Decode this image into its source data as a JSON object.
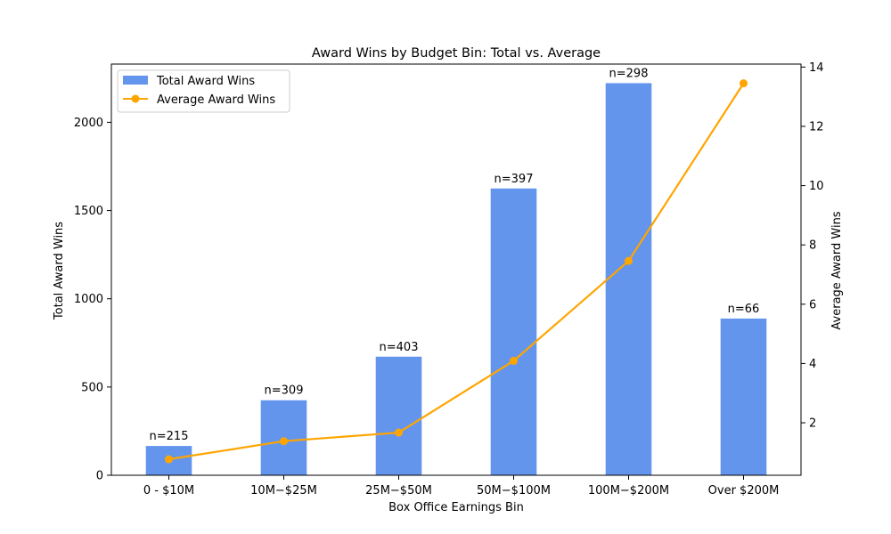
{
  "chart_data": {
    "type": "bar",
    "title": "Award Wins by Budget Bin: Total vs. Average",
    "xlabel": "Box Office Earnings Bin",
    "ylabel": "Total Award Wins",
    "y2label": "Average Award Wins",
    "categories": [
      "0 - $10M",
      "$10M - $25M",
      "$25M - $50M",
      "$50M - $100M",
      "$100M - $200M",
      "Over $200M"
    ],
    "category_tick_labels": [
      "0 - $10M",
      "10M−$25M",
      "25M−$50M",
      "50M−$100M",
      "100M−$200M",
      "Over $200M"
    ],
    "ylim": [
      0,
      2330
    ],
    "y2lim": [
      0.23,
      14.1
    ],
    "yticks": [
      0,
      500,
      1000,
      1500,
      2000
    ],
    "y2ticks": [
      2,
      4,
      6,
      8,
      10,
      12,
      14
    ],
    "series": [
      {
        "name": "Total Award Wins",
        "type": "bar",
        "axis": "left",
        "color": "#6495ED",
        "values": [
          166,
          425,
          672,
          1625,
          2222,
          888
        ]
      },
      {
        "name": "Average Award Wins",
        "type": "line",
        "axis": "right",
        "color": "#FFA500",
        "marker": "circle",
        "values": [
          0.77,
          1.38,
          1.67,
          4.09,
          7.46,
          13.45
        ]
      }
    ],
    "bar_annotations": [
      "n=215",
      "n=309",
      "n=403",
      "n=397",
      "n=298",
      "n=66"
    ],
    "legend_position": "upper-left",
    "grid": false
  }
}
